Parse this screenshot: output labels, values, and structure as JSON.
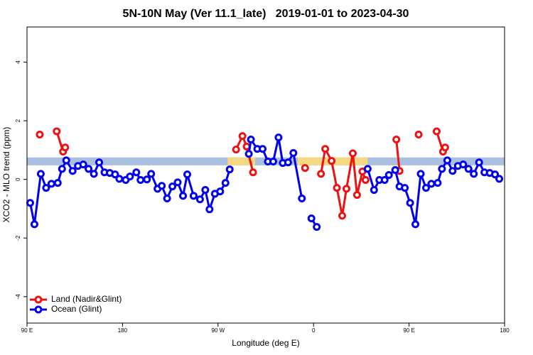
{
  "chart_data": {
    "type": "line",
    "title": "5N-10N May (Ver 11.1_late)   2019-01-01 to 2023-04-30",
    "x_label": "Longitude (deg E)",
    "y_label": "XCO2 - MLO trend (ppm)",
    "xlim": [
      90,
      540
    ],
    "ylim": [
      -4.9,
      5.2
    ],
    "xticks": [
      {
        "value": 90,
        "label": "90 E"
      },
      180,
      {
        "value": 270,
        "label": "90 W"
      },
      {
        "value": 360,
        "label": "0"
      },
      {
        "value": 450,
        "label": "90 E"
      },
      {
        "value": 540,
        "label": "180"
      }
    ],
    "yticks": [
      -4,
      -2,
      0,
      2,
      4
    ],
    "band_ylim": [
      0.48,
      0.75
    ],
    "band_color": "#aac0e0",
    "band_highlights": [
      [
        279,
        305
      ],
      [
        345,
        411
      ]
    ],
    "band_highlight_color": "#f7d882",
    "legend": "bottom-left",
    "series": [
      {
        "name": "Land (Nadir&Glint)",
        "color": "#ee1111",
        "x": [
          102,
          null,
          118,
          124,
          126,
          null,
          287,
          293,
          297,
          303,
          null,
          352,
          null,
          367,
          371,
          377,
          382,
          387,
          391,
          397,
          401,
          406,
          409,
          null,
          438,
          441,
          null,
          459,
          null,
          476,
          482,
          484
        ],
        "values": [
          1.53,
          null,
          1.64,
          0.95,
          1.09,
          null,
          1.02,
          1.48,
          1.12,
          0.24,
          null,
          0.39,
          null,
          0.19,
          1.04,
          0.63,
          -0.29,
          -1.24,
          -0.32,
          0.89,
          -0.53,
          0.27,
          -0.02,
          null,
          1.36,
          0.29,
          null,
          1.53,
          null,
          1.64,
          0.95,
          1.09
        ]
      },
      {
        "name": "Ocean (Glint)",
        "color": "#0000ee",
        "x": [
          93,
          97,
          103,
          108,
          113,
          119,
          123,
          127,
          133,
          138,
          143,
          148,
          153,
          158,
          163,
          168,
          173,
          177,
          183,
          187,
          193,
          197,
          203,
          207,
          213,
          217,
          222,
          227,
          232,
          237,
          241,
          247,
          253,
          258,
          262,
          267,
          272,
          277,
          281,
          null,
          299,
          301,
          307,
          312,
          317,
          322,
          327,
          331,
          336,
          341,
          349,
          null,
          358,
          363,
          null,
          411,
          417,
          422,
          427,
          431,
          437,
          441,
          446,
          451,
          456,
          461,
          466,
          471,
          477,
          481,
          486,
          491,
          496,
          501,
          506,
          511,
          516,
          521,
          526,
          531,
          535
        ],
        "values": [
          -0.8,
          -1.53,
          0.19,
          -0.29,
          -0.15,
          -0.12,
          0.36,
          0.65,
          0.29,
          0.46,
          0.51,
          0.36,
          0.19,
          0.58,
          0.24,
          0.22,
          0.17,
          0.02,
          -0.02,
          0.1,
          0.24,
          -0.02,
          0,
          0.19,
          -0.32,
          -0.22,
          -0.65,
          -0.24,
          -0.1,
          -0.56,
          0.17,
          -0.56,
          -0.68,
          -0.36,
          -1.02,
          -0.49,
          -0.41,
          -0.12,
          0.34,
          null,
          0.87,
          1.36,
          1.04,
          1.04,
          0.61,
          0.61,
          1.43,
          0.56,
          0.58,
          0.9,
          -0.65,
          null,
          -1.33,
          -1.62,
          null,
          0.36,
          -0.36,
          -0.02,
          -0.02,
          0.15,
          0.32,
          -0.24,
          -0.29,
          -0.8,
          -1.53,
          0.19,
          -0.29,
          -0.15,
          -0.12,
          0.36,
          0.65,
          0.29,
          0.46,
          0.51,
          0.36,
          0.19,
          0.58,
          0.24,
          0.22,
          0.17,
          0.02
        ]
      }
    ]
  }
}
